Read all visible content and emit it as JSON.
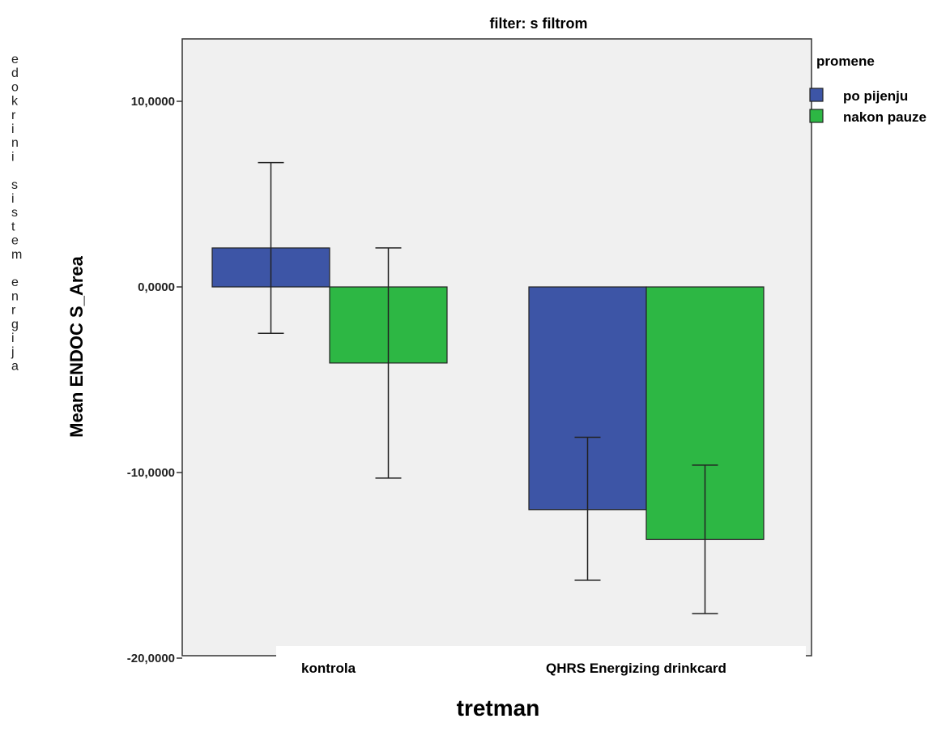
{
  "side_text": "edokrini sistem enrgija",
  "legend_title": "promene",
  "chart_data": {
    "type": "bar",
    "title": "filter: s filtrom",
    "xlabel": "tretman",
    "ylabel": "Mean ENDOC S_Area",
    "categories": [
      "kontrola",
      "QHRS Energizing drinkcard"
    ],
    "series": [
      {
        "name": "po pijenju",
        "color": "#3d55a6",
        "values": [
          2.1,
          -12.0
        ],
        "error_low": [
          -2.5,
          -15.8
        ],
        "error_high": [
          6.7,
          -8.1
        ]
      },
      {
        "name": "nakon pauze",
        "color": "#2db744",
        "values": [
          -4.1,
          -13.6
        ],
        "error_low": [
          -10.3,
          -17.6
        ],
        "error_high": [
          2.1,
          -9.6
        ]
      }
    ],
    "ylim": [
      -20,
      14
    ],
    "yticks": [
      {
        "value": 10,
        "label": "10,0000"
      },
      {
        "value": 0,
        "label": "0,0000"
      },
      {
        "value": -10,
        "label": "-10,0000"
      },
      {
        "value": -20,
        "label": "-20,0000"
      }
    ],
    "plot_background": "#f0f0f0",
    "grid": false,
    "legend_position": "right"
  }
}
